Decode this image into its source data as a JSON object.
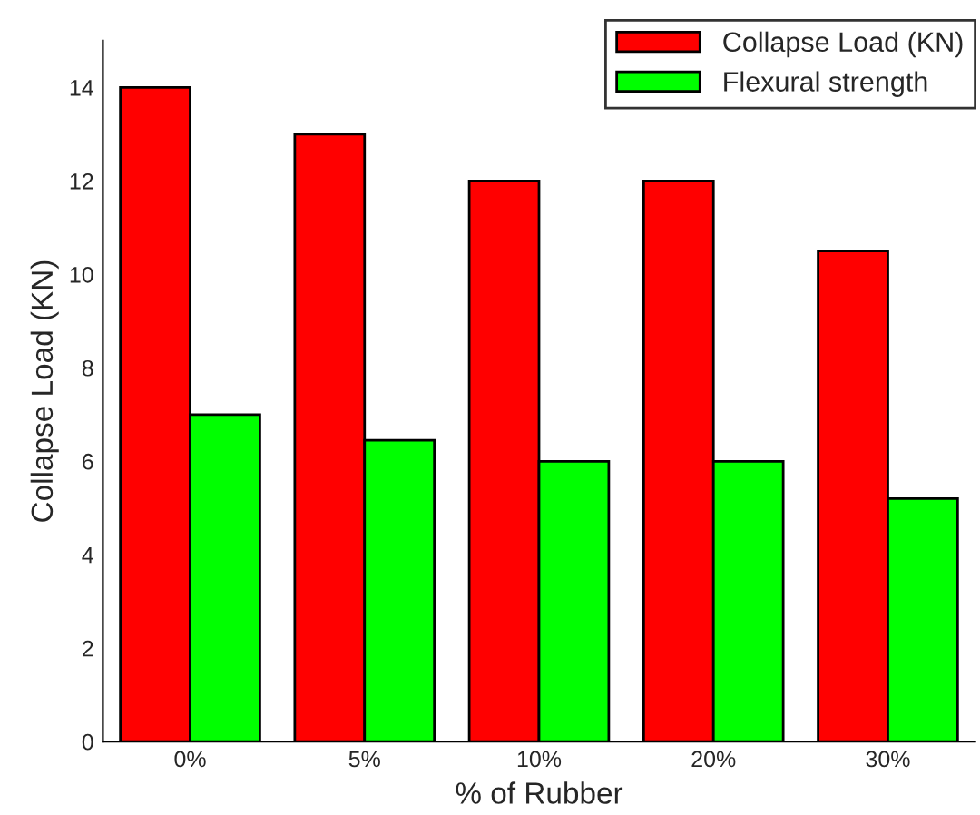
{
  "chart_data": {
    "type": "bar",
    "xlabel": "% of Rubber",
    "ylabel": "Collapse Load (KN)",
    "categories": [
      "0%",
      "5%",
      "10%",
      "20%",
      "30%"
    ],
    "series": [
      {
        "name": "Collapse Load (KN)",
        "color": "#ff0000",
        "values": [
          14,
          13,
          12,
          12,
          10.5
        ]
      },
      {
        "name": "Flexural strength",
        "color": "#00ff00",
        "values": [
          7,
          6.45,
          6,
          6,
          5.2
        ]
      }
    ],
    "ylim": [
      0,
      15
    ],
    "yticks": [
      0,
      2,
      4,
      6,
      8,
      10,
      12,
      14
    ],
    "grid": false,
    "legend": "top right"
  }
}
